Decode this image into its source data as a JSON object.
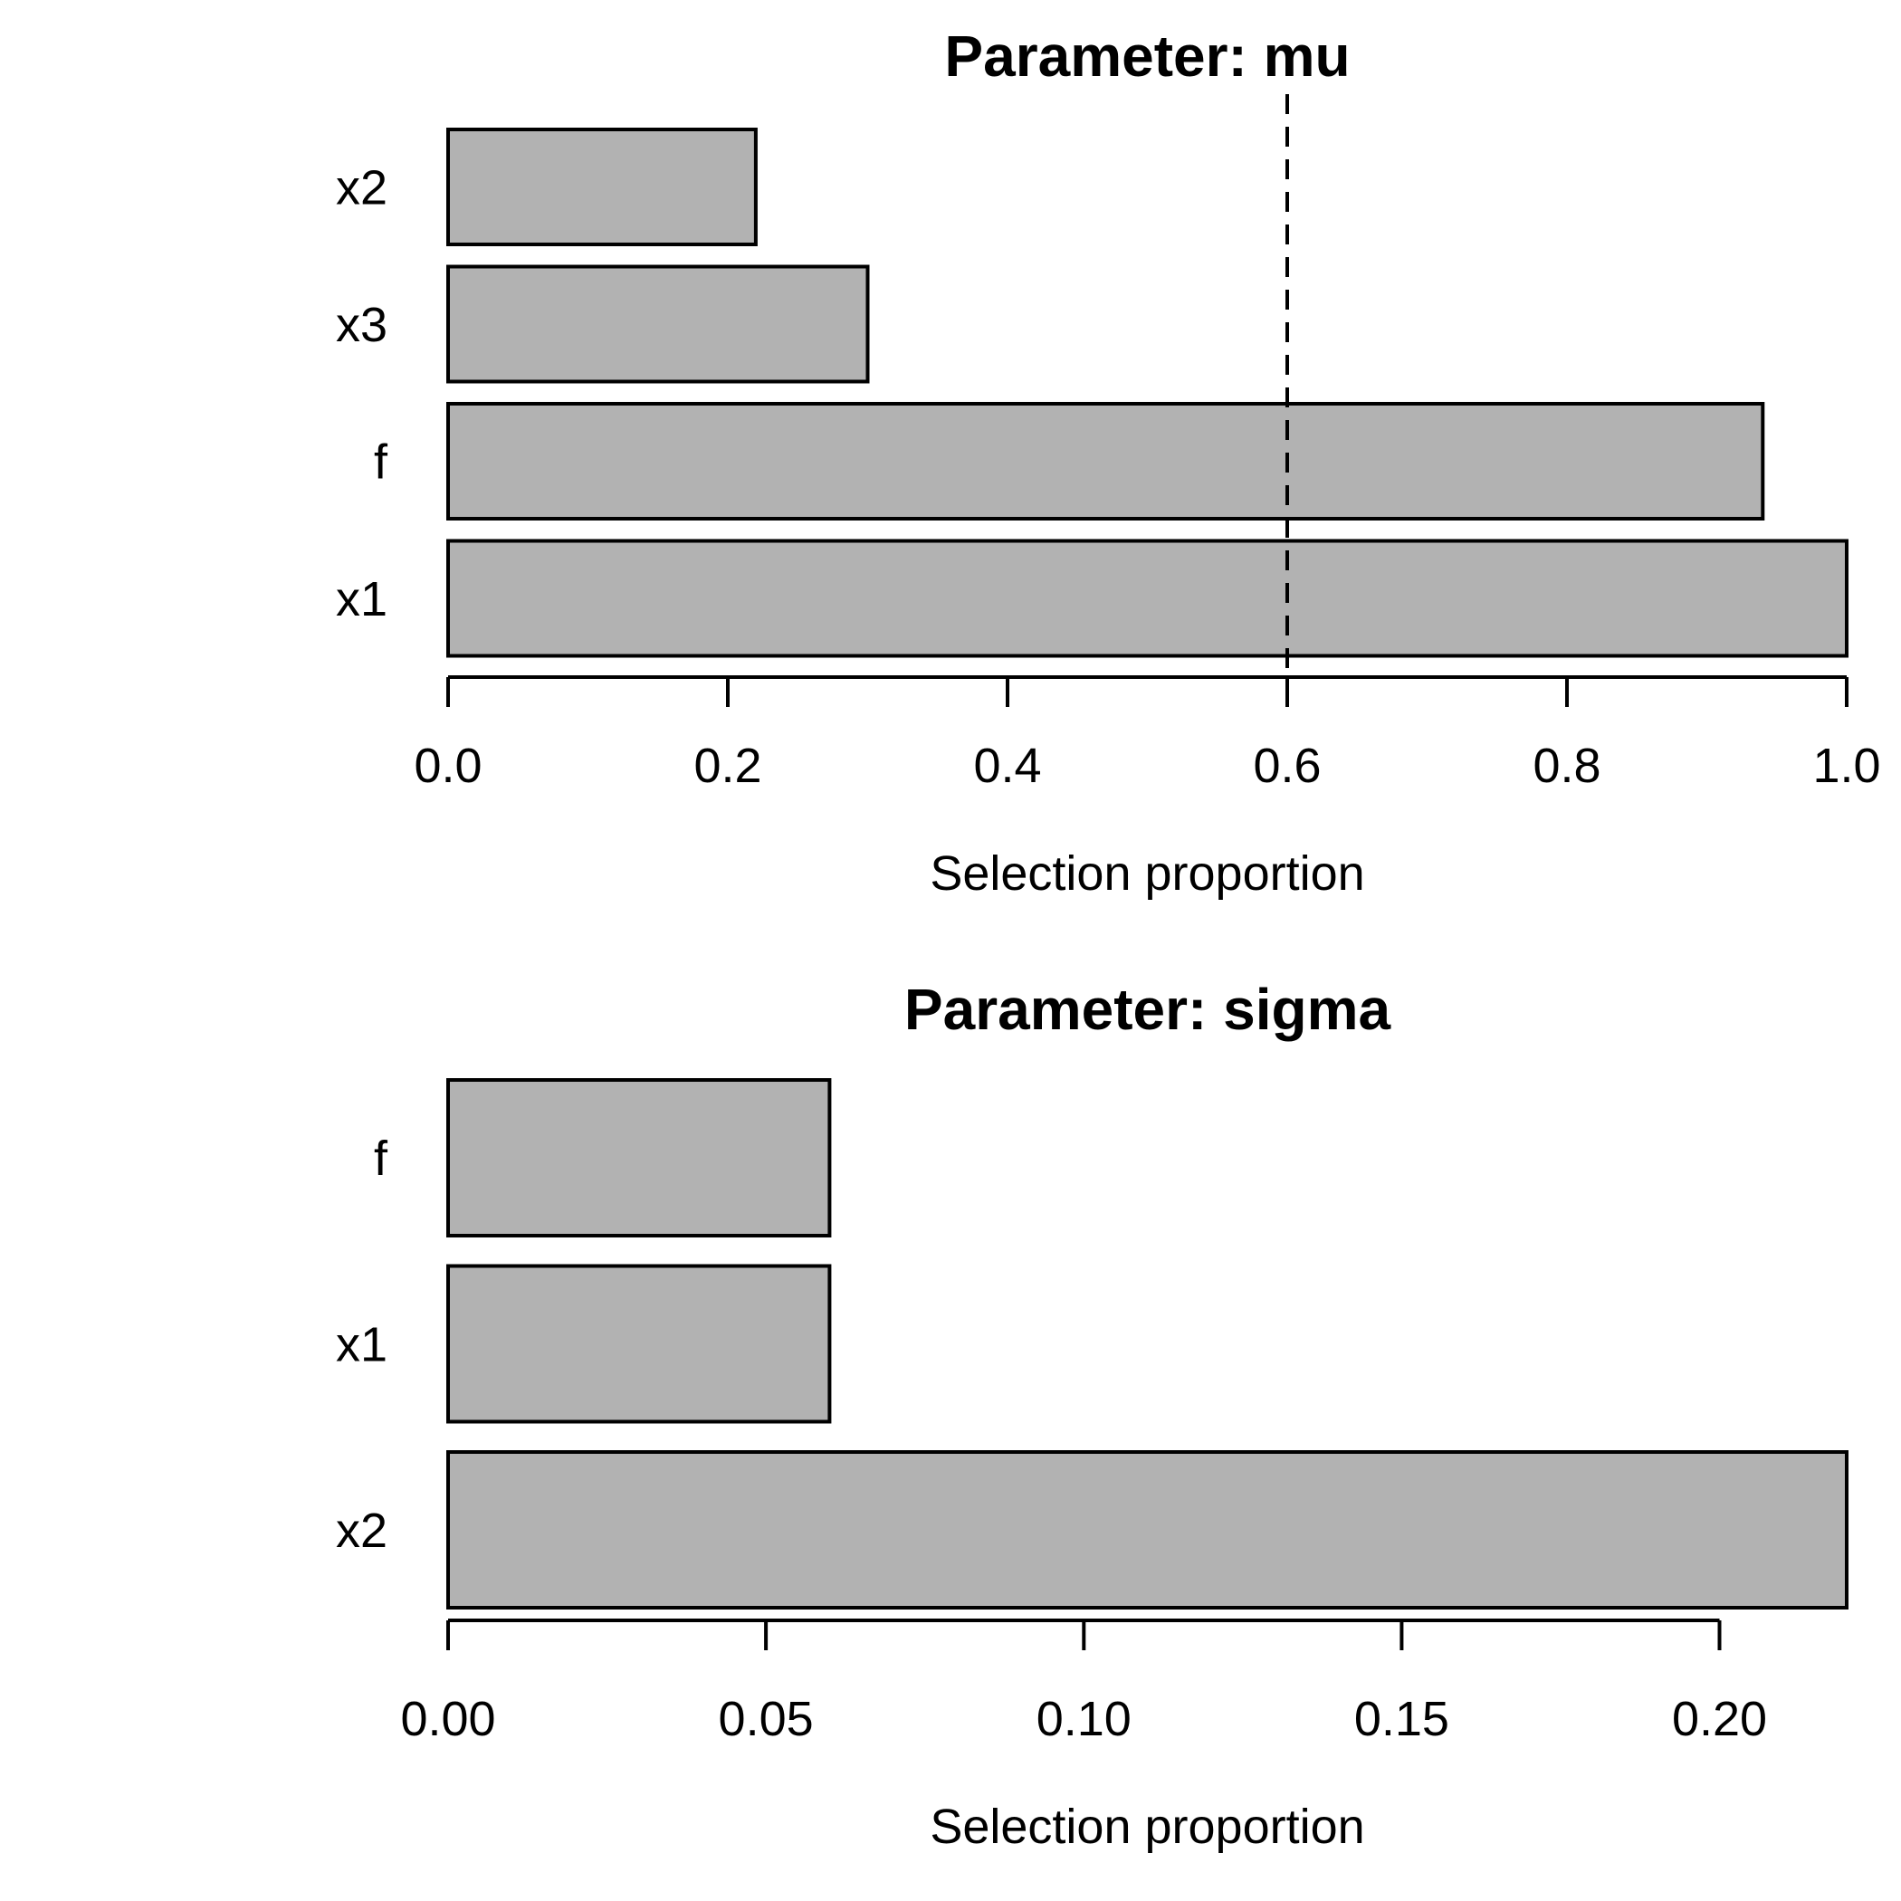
{
  "figure": {
    "background": "#ffffff",
    "text_color": "#000000"
  },
  "chart_data": [
    {
      "type": "bar",
      "orientation": "horizontal",
      "title": "Parameter: mu",
      "xlabel": "Selection proportion",
      "ylabel": "",
      "categories_top_to_bottom": [
        "x2",
        "x3",
        "f",
        "x1"
      ],
      "values": [
        0.22,
        0.3,
        0.94,
        1.0
      ],
      "xlim": [
        0,
        1.0
      ],
      "xticks": [
        0,
        0.2,
        0.4,
        0.6,
        0.8,
        1.0
      ],
      "xtick_labels": [
        "0.0",
        "0.2",
        "0.4",
        "0.6",
        "0.8",
        "1.0"
      ],
      "reference_line": {
        "value": 0.6,
        "style": "dashed",
        "color": "#000000"
      },
      "bar_fill": "#b2b2b2",
      "bar_stroke": "#000000",
      "grid": false,
      "legend": false
    },
    {
      "type": "bar",
      "orientation": "horizontal",
      "title": "Parameter: sigma",
      "xlabel": "Selection proportion",
      "ylabel": "",
      "categories_top_to_bottom": [
        "f",
        "x1",
        "x2"
      ],
      "values": [
        0.06,
        0.06,
        0.22
      ],
      "xlim": [
        0,
        0.22
      ],
      "xticks": [
        0,
        0.05,
        0.1,
        0.15,
        0.2
      ],
      "xtick_labels": [
        "0.00",
        "0.05",
        "0.10",
        "0.15",
        "0.20"
      ],
      "reference_line": null,
      "bar_fill": "#b2b2b2",
      "bar_stroke": "#000000",
      "grid": false,
      "legend": false
    }
  ]
}
